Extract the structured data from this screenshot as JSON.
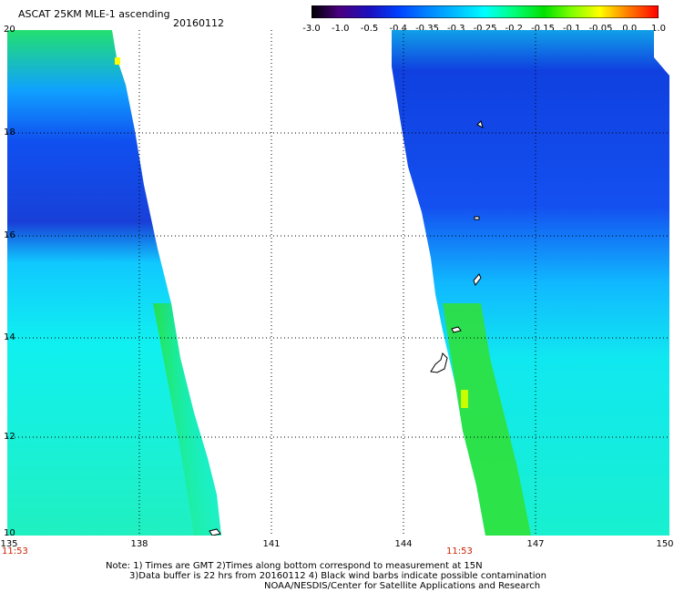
{
  "header": {
    "title": "ASCAT 25KM MLE-1 ascending",
    "date": "20160112"
  },
  "colorbar": {
    "labels": [
      "-3.0",
      "-1.0",
      "-0.5",
      "-0.4",
      "-0.35",
      "-0.3",
      "-0.25",
      "-0.2",
      "-0.15",
      "-0.1",
      "-0.05",
      "0.0",
      "1.0"
    ],
    "colors": [
      "#000000",
      "#4a0080",
      "#1a10c0",
      "#0040ff",
      "#0080ff",
      "#00c0ff",
      "#00ffff",
      "#00ff80",
      "#00e000",
      "#80ff00",
      "#ffff00",
      "#ff8000",
      "#ff0000"
    ]
  },
  "map": {
    "lat_labels": [
      "20",
      "18",
      "16",
      "14",
      "12",
      "10"
    ],
    "lon_labels": [
      "135",
      "138",
      "141",
      "144",
      "147",
      "150"
    ],
    "times": [
      "11:53",
      "11:53"
    ]
  },
  "notes": {
    "line1": "Note: 1) Times are GMT 2)Times along bottom correspond to measurement at 15N",
    "line2": "3)Data buffer is 22 hrs from 20160112 4) Black wind barbs indicate possible contamination",
    "line3": "NOAA/NESDIS/Center for Satellite Applications and Research"
  }
}
